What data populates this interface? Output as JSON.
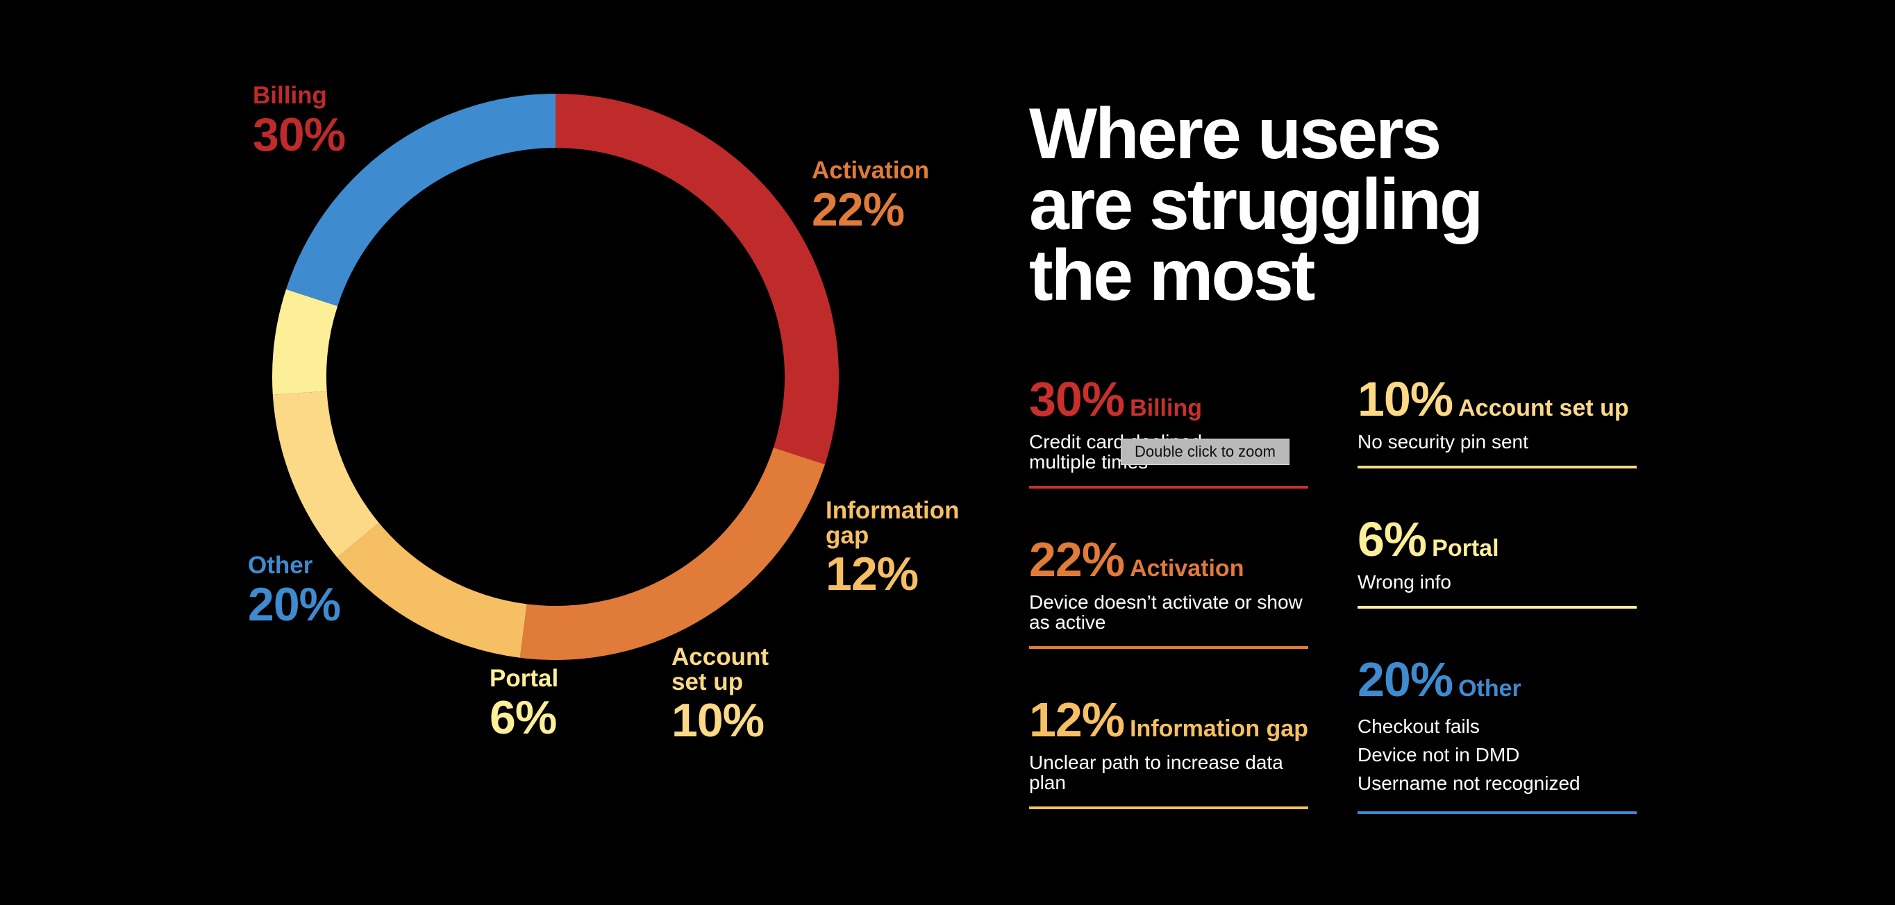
{
  "headline": "Where users\nare struggling\nthe most",
  "colors": {
    "billing": "#be2b2a",
    "activation": "#e07b39",
    "information_gap": "#f6bf63",
    "account_set_up": "#fcd986",
    "portal": "#fdee98",
    "other": "#3f8bd0"
  },
  "chart_data": {
    "type": "pie",
    "donut": true,
    "title": "Where users are struggling the most",
    "slices": [
      {
        "label": "Billing",
        "value": 30,
        "value_label": "30%",
        "color": "#be2b2a"
      },
      {
        "label": "Activation",
        "value": 22,
        "value_label": "22%",
        "color": "#e07b39"
      },
      {
        "label": "Information\ngap",
        "value": 12,
        "value_label": "12%",
        "color": "#f6bf63"
      },
      {
        "label": "Account\nset up",
        "value": 10,
        "value_label": "10%",
        "color": "#fcd986"
      },
      {
        "label": "Portal",
        "value": 6,
        "value_label": "6%",
        "color": "#fdee98"
      },
      {
        "label": "Other",
        "value": 20,
        "value_label": "20%",
        "color": "#3f8bd0"
      }
    ]
  },
  "cards": [
    {
      "pct": "30%",
      "label": "Billing",
      "color": "#c9302c",
      "lines": [
        "Credit card declined",
        "multiple times"
      ]
    },
    {
      "pct": "22%",
      "label": "Activation",
      "color": "#e07b39",
      "lines": [
        "Device doesn’t activate or show",
        "as active"
      ]
    },
    {
      "pct": "12%",
      "label": "Information gap",
      "color": "#f6bf63",
      "lines": [
        "Unclear path to increase data",
        "plan"
      ]
    },
    {
      "pct": "10%",
      "label": "Account set up",
      "color": "#fcd986",
      "lines": [
        "No security pin sent"
      ]
    },
    {
      "pct": "6%",
      "label": "Portal",
      "color": "#fdee98",
      "lines": [
        "Wrong info"
      ]
    },
    {
      "pct": "20%",
      "label": "Other",
      "color": "#3f8bd0",
      "lines": [
        "Checkout fails",
        "Device not in DMD",
        "Username not recognized"
      ]
    }
  ],
  "tooltip": "Double click to zoom"
}
